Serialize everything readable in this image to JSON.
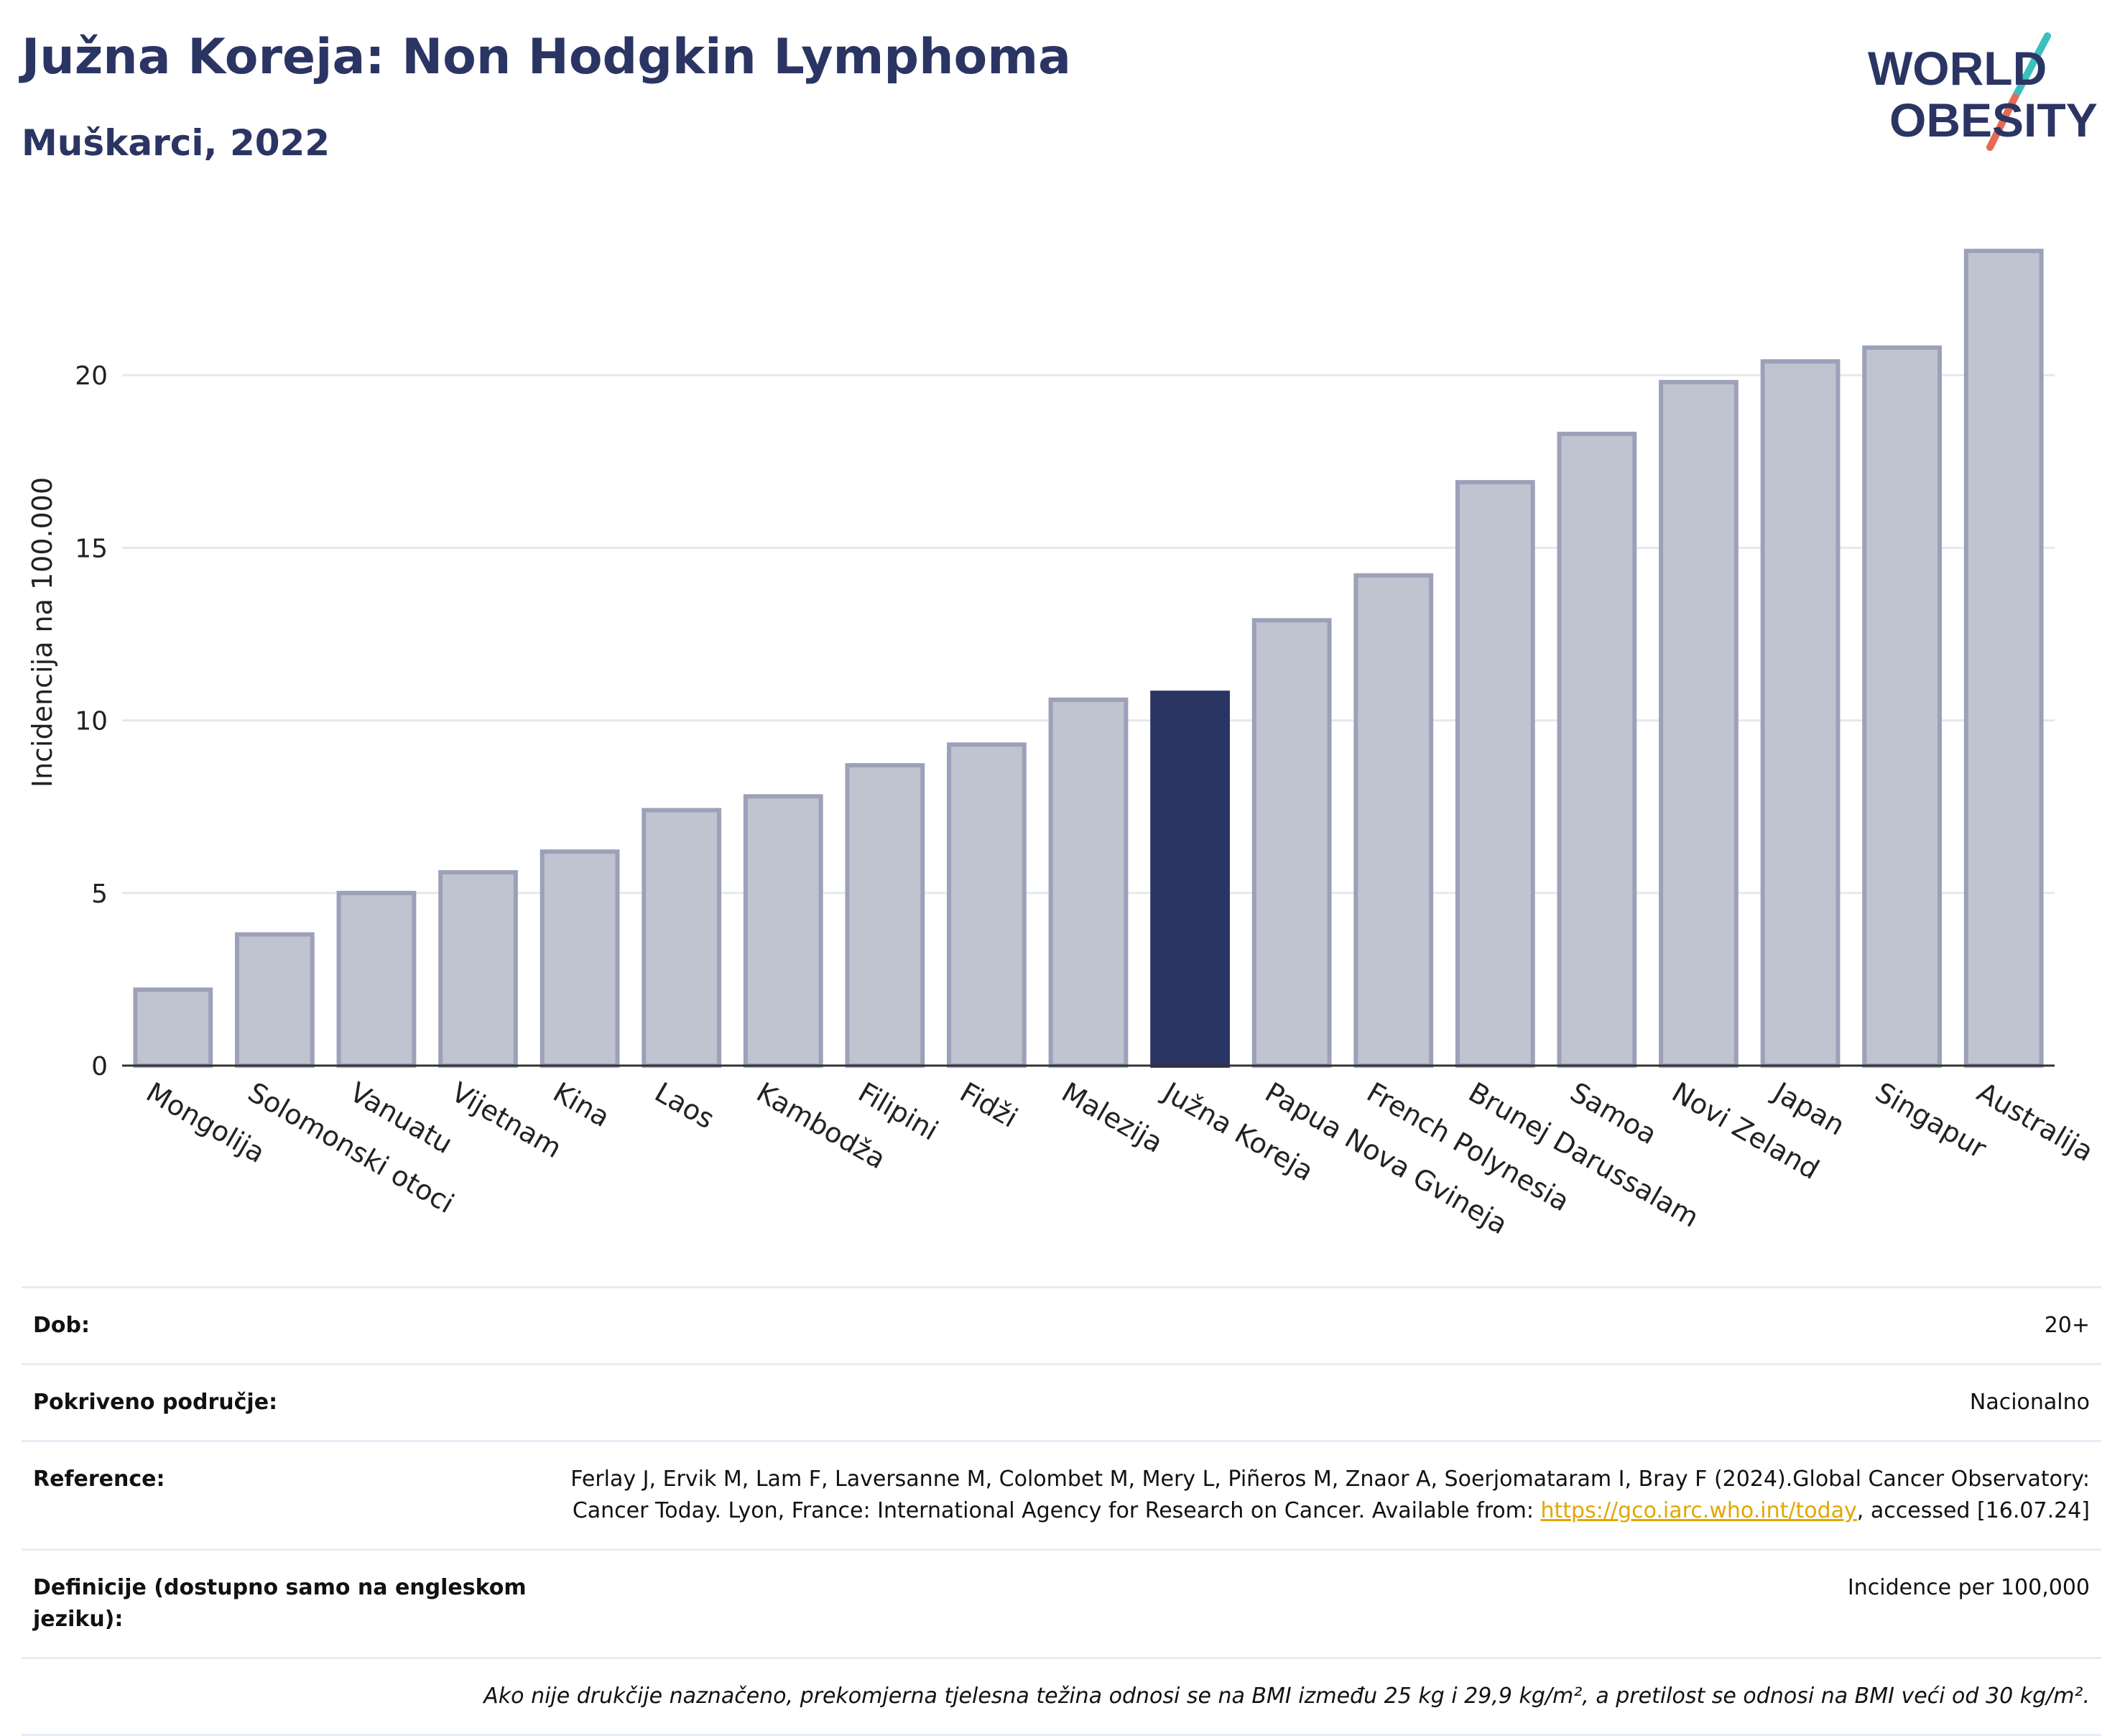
{
  "header": {
    "title": "Južna Koreja: Non Hodgkin Lymphoma",
    "subtitle": "Muškarci, 2022",
    "logo_line1": "WORLD",
    "logo_line2": "OBESITY"
  },
  "colors": {
    "title": "#2b3564",
    "bar": "#c0c4d1",
    "bar_stroke": "#9ca1b9",
    "highlight": "#2b3564",
    "link": "#e0a800"
  },
  "chart_data": {
    "type": "bar",
    "ylabel": "Incidencija na 100.000",
    "ylim": [
      0,
      24
    ],
    "yticks": [
      0,
      5,
      10,
      15,
      20
    ],
    "grid": true,
    "highlight": "Južna Koreja",
    "categories": [
      "Mongolija",
      "Solomonski otoci",
      "Vanuatu",
      "Vijetnam",
      "Kina",
      "Laos",
      "Kambodža",
      "Filipini",
      "Fidži",
      "Malezija",
      "Južna Koreja",
      "Papua Nova Gvineja",
      "French Polynesia",
      "Brunej Darussalam",
      "Samoa",
      "Novi Zeland",
      "Japan",
      "Singapur",
      "Australija"
    ],
    "values": [
      2.2,
      3.8,
      5.0,
      5.6,
      6.2,
      7.4,
      7.8,
      8.7,
      9.3,
      10.6,
      10.8,
      12.9,
      14.2,
      16.9,
      18.3,
      19.8,
      20.4,
      20.8,
      23.6
    ]
  },
  "meta": {
    "age_label": "Dob:",
    "age_value": "20+",
    "coverage_label": "Pokriveno područje:",
    "coverage_value": "Nacionalno",
    "reference_label": "Reference:",
    "reference_text1": "Ferlay J, Ervik M, Lam F, Laversanne M, Colombet M, Mery L, Piñeros M, Znaor A, Soerjomataram I, Bray F (2024).Global Cancer Observatory: Cancer Today. Lyon, France: International Agency for Research on Cancer. Available from: ",
    "reference_link": "https://gco.iarc.who.int/today",
    "reference_text2": ", accessed [16.07.24]",
    "definitions_label": "Definicije (dostupno samo na engleskom jeziku):",
    "definitions_value": "Incidence per 100,000",
    "footnote": "Ako nije drukčije naznačeno, prekomjerna tjelesna težina odnosi se na BMI između 25 kg i 29,9 kg/m², a pretilost se odnosi na BMI veći od 30 kg/m²."
  }
}
